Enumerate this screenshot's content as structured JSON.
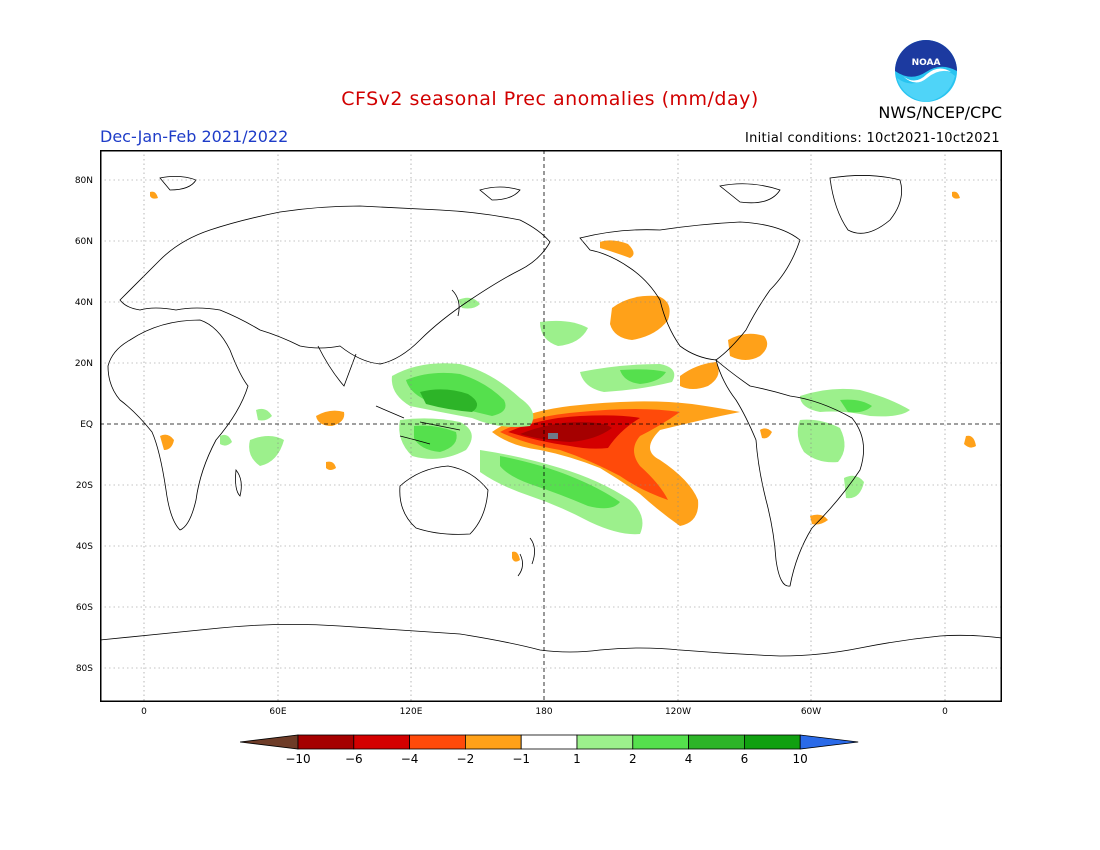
{
  "header": {
    "title": "CFSv2 seasonal Prec anomalies (mm/day)",
    "season": "Dec-Jan-Feb 2021/2022",
    "initial_conditions": "Initial conditions: 10ct2021-10ct2021",
    "agency": "NWS/NCEP/CPC",
    "logo_text": "NOAA"
  },
  "map": {
    "lat_labels": [
      "80N",
      "60N",
      "40N",
      "20N",
      "EQ",
      "20S",
      "40S",
      "60S",
      "80S"
    ],
    "lon_labels": [
      "0",
      "60E",
      "120E",
      "180",
      "120W",
      "60W",
      "0"
    ],
    "grid": "dotted"
  },
  "colorbar": {
    "labels": [
      "-10",
      "-6",
      "-4",
      "-2",
      "-1",
      "1",
      "2",
      "4",
      "6",
      "10"
    ],
    "colors": [
      "#6e3c28",
      "#a50000",
      "#d40000",
      "#ff4a0a",
      "#ffa119",
      "#ffffff",
      "#9cf08c",
      "#55e04d",
      "#2db428",
      "#10a010",
      "#2a6ae8"
    ]
  }
}
